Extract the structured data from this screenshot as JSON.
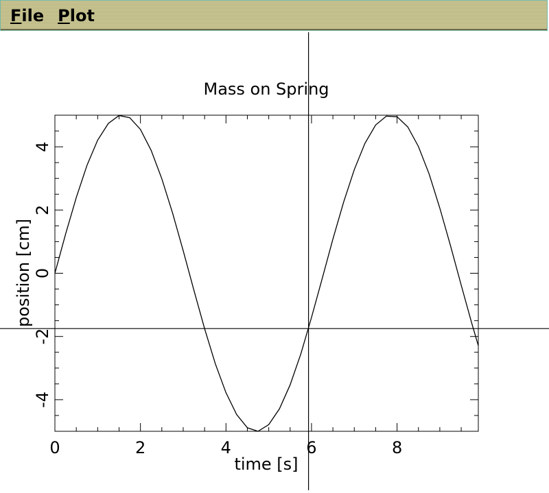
{
  "menu": {
    "file": {
      "mnemonic": "F",
      "rest": "ile"
    },
    "plot": {
      "mnemonic": "P",
      "rest": "lot"
    }
  },
  "crosshair": {
    "x": 5.93,
    "y": -1.75
  },
  "chart_data": {
    "type": "line",
    "title": "Mass on Spring",
    "xlabel": "time [s]",
    "ylabel": "position [cm]",
    "xlim": [
      0,
      9.9
    ],
    "ylim": [
      -5,
      5
    ],
    "x_ticks": [
      0,
      2,
      4,
      6,
      8
    ],
    "y_ticks": [
      -4,
      -2,
      0,
      2,
      4
    ],
    "grid": false,
    "line_color": "#000000",
    "series": [
      {
        "x": [
          0,
          0.25,
          0.5,
          0.75,
          1.0,
          1.25,
          1.5,
          1.75,
          2.0,
          2.25,
          2.5,
          2.75,
          3.0,
          3.25,
          3.5,
          3.75,
          4.0,
          4.25,
          4.5,
          4.75,
          5.0,
          5.25,
          5.5,
          5.75,
          6.0,
          6.25,
          6.5,
          6.75,
          7.0,
          7.25,
          7.5,
          7.75,
          8.0,
          8.25,
          8.5,
          8.75,
          9.0,
          9.25,
          9.5,
          9.75,
          9.9
        ],
        "y": [
          0.0,
          1.24,
          2.4,
          3.41,
          4.21,
          4.74,
          4.99,
          4.92,
          4.55,
          3.89,
          2.99,
          1.91,
          0.71,
          -0.54,
          -1.75,
          -2.86,
          -3.78,
          -4.47,
          -4.89,
          -5.0,
          -4.79,
          -4.29,
          -3.53,
          -2.55,
          -1.4,
          -0.17,
          1.08,
          2.25,
          3.28,
          4.11,
          4.69,
          4.97,
          4.95,
          4.63,
          4.01,
          3.14,
          2.06,
          0.87,
          -0.38,
          -1.6,
          -2.29
        ]
      }
    ]
  }
}
